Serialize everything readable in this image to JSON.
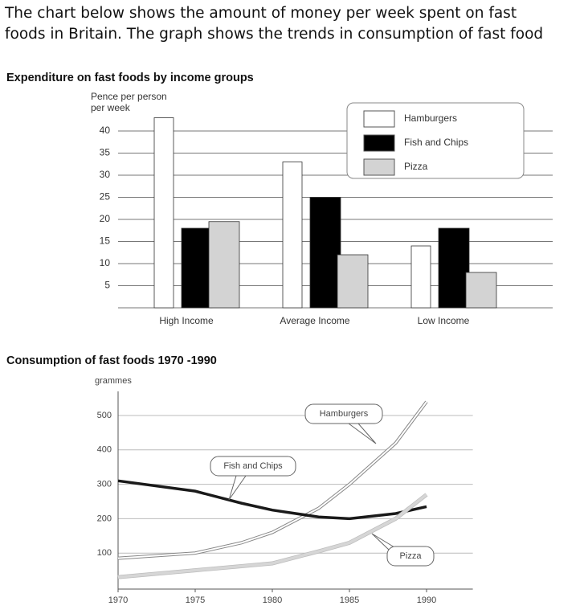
{
  "heading": [
    "The chart below shows the amount of money per week spent on fast",
    "foods in Britain. The graph shows the trends in consumption of fast food"
  ],
  "chart_data": [
    {
      "type": "bar",
      "title": "Expenditure on fast foods by income groups",
      "ylabel": [
        "Pence per person",
        "per week"
      ],
      "categories": [
        "High Income",
        "Average Income",
        "Low Income"
      ],
      "series": [
        {
          "name": "Hamburgers",
          "color": "#ffffff",
          "values": [
            43,
            33,
            14
          ]
        },
        {
          "name": "Fish and Chips",
          "color": "#000000",
          "values": [
            18,
            25,
            18
          ]
        },
        {
          "name": "Pizza",
          "color": "#d3d3d3",
          "values": [
            19.5,
            12,
            8
          ]
        }
      ],
      "ylim": [
        0,
        44
      ],
      "yticks": [
        5,
        10,
        15,
        20,
        25,
        30,
        35,
        40
      ],
      "grid": true,
      "legend": "upper-right"
    },
    {
      "type": "line",
      "title": "Consumption of fast foods 1970 -1990",
      "ylabel": "grammes",
      "x": [
        1970,
        1975,
        1978,
        1980,
        1983,
        1985,
        1988,
        1990
      ],
      "series": [
        {
          "name": "Hamburgers",
          "color": "#ffffff",
          "values": [
            85,
            100,
            130,
            160,
            230,
            300,
            420,
            540
          ]
        },
        {
          "name": "Fish and Chips",
          "color": "#1a1a1a",
          "values": [
            310,
            280,
            245,
            225,
            205,
            200,
            215,
            235
          ]
        },
        {
          "name": "Pizza",
          "color": "#d6d6d6",
          "values": [
            30,
            50,
            62,
            70,
            105,
            130,
            200,
            270
          ]
        }
      ],
      "xlim": [
        1970,
        1993
      ],
      "xticks": [
        1970,
        1975,
        1980,
        1985,
        1990
      ],
      "ylim": [
        0,
        570
      ],
      "yticks": [
        100,
        200,
        300,
        400,
        500
      ],
      "grid": true
    }
  ]
}
